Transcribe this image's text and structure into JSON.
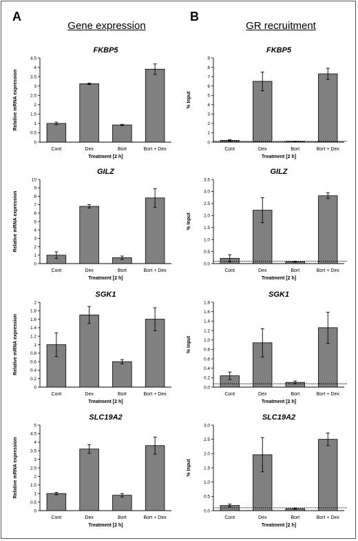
{
  "panels": {
    "left_letter": "A",
    "right_letter": "B"
  },
  "columns": {
    "left_title": "Gene expression",
    "right_title": "GR recruitment"
  },
  "chart_data": [
    {
      "type": "bar",
      "title": "FKBP5",
      "ylabel": "Relative mRNA expression",
      "xlabel": "Treatment [2 h]",
      "categories": [
        "Cont",
        "Dex",
        "Bort",
        "Bort + Dex"
      ],
      "values": [
        1.0,
        3.12,
        0.92,
        3.9
      ],
      "errors": [
        0.07,
        0.04,
        0.03,
        0.28
      ],
      "ylim": [
        0,
        4.5
      ],
      "yticks": [
        "0",
        "0.5",
        "1",
        "1.5",
        "2",
        "2.5",
        "3",
        "3.5",
        "4",
        "4.5"
      ],
      "yticksStep": 0.5
    },
    {
      "type": "bar",
      "title": "FKBP5",
      "ylabel": "% Input",
      "xlabel": "Treatment [2 h]",
      "categories": [
        "Cont",
        "Dex",
        "Bort",
        "Bort + Dex"
      ],
      "values": [
        0.18,
        6.5,
        0.08,
        7.3
      ],
      "errors": [
        0.08,
        1.0,
        0.02,
        0.6
      ],
      "ylim": [
        0,
        9
      ],
      "yticks": [
        "0",
        "1",
        "2",
        "3",
        "4",
        "5",
        "6",
        "7",
        "8",
        "9"
      ],
      "yticksStep": 1,
      "baseline": 0.1
    },
    {
      "type": "bar",
      "title": "GILZ",
      "ylabel": "Relative mRNA expression",
      "xlabel": "Treatment [2 h]",
      "categories": [
        "Cont",
        "Dex",
        "Bort",
        "Bort + Dex"
      ],
      "values": [
        1.0,
        6.8,
        0.7,
        7.8
      ],
      "errors": [
        0.4,
        0.2,
        0.2,
        1.1
      ],
      "ylim": [
        0,
        10
      ],
      "yticks": [
        "0",
        "1",
        "2",
        "3",
        "4",
        "5",
        "6",
        "7",
        "8",
        "9",
        "10"
      ],
      "yticksStep": 1
    },
    {
      "type": "bar",
      "title": "GILZ",
      "ylabel": "% Input",
      "xlabel": "Treatment [2 h]",
      "categories": [
        "Cont",
        "Dex",
        "Bort",
        "Bort + Dex"
      ],
      "values": [
        0.22,
        2.22,
        0.08,
        2.82
      ],
      "errors": [
        0.15,
        0.52,
        0.02,
        0.12
      ],
      "ylim": [
        0,
        3.5
      ],
      "yticks": [
        "0.0",
        "0.5",
        "1.0",
        "1.5",
        "2.0",
        "2.5",
        "3.0",
        "3.5"
      ],
      "yticksStep": 0.5,
      "baseline": 0.1
    },
    {
      "type": "bar",
      "title": "SGK1",
      "ylabel": "Relative mRNA expression",
      "xlabel": "Treatment [2 h]",
      "categories": [
        "Cont",
        "Dex",
        "Bort",
        "Bort + Dex"
      ],
      "values": [
        1.0,
        1.7,
        0.6,
        1.6
      ],
      "errors": [
        0.28,
        0.2,
        0.05,
        0.27
      ],
      "ylim": [
        0,
        2
      ],
      "yticks": [
        "0",
        "0.2",
        "0.4",
        "0.6",
        "0.8",
        "1",
        "1.2",
        "1.4",
        "1.6",
        "1.8",
        "2"
      ],
      "yticksStep": 0.2
    },
    {
      "type": "bar",
      "title": "SGK1",
      "ylabel": "% Input",
      "xlabel": "Treatment [2 h]",
      "categories": [
        "Cont",
        "Dex",
        "Bort",
        "Bort + Dex"
      ],
      "values": [
        0.24,
        0.94,
        0.1,
        1.26
      ],
      "errors": [
        0.08,
        0.3,
        0.03,
        0.33
      ],
      "ylim": [
        0,
        1.8
      ],
      "yticks": [
        "0.0",
        "0.2",
        "0.4",
        "0.6",
        "0.8",
        "1.0",
        "1.2",
        "1.4",
        "1.6",
        "1.8"
      ],
      "yticksStep": 0.2,
      "baseline": 0.07
    },
    {
      "type": "bar",
      "title": "SLC19A2",
      "ylabel": "Relative mRNA expression",
      "xlabel": "Treatment [2 h]",
      "categories": [
        "Cont",
        "Dex",
        "Bort",
        "Bort + Dex"
      ],
      "values": [
        1.0,
        3.6,
        0.9,
        3.8
      ],
      "errors": [
        0.07,
        0.25,
        0.1,
        0.5
      ],
      "ylim": [
        0,
        5
      ],
      "yticks": [
        "0",
        "0.5",
        "1",
        "1.5",
        "2",
        "2.5",
        "3",
        "3.5",
        "4",
        "4.5",
        "5"
      ],
      "yticksStep": 0.5
    },
    {
      "type": "bar",
      "title": "SLC19A2",
      "ylabel": "% Input",
      "xlabel": "Treatment [2 h]",
      "categories": [
        "Cont",
        "Dex",
        "Bort",
        "Bort + Dex"
      ],
      "values": [
        0.18,
        1.96,
        0.07,
        2.5
      ],
      "errors": [
        0.05,
        0.6,
        0.02,
        0.22
      ],
      "ylim": [
        0,
        3.0
      ],
      "yticks": [
        "0.0",
        "0.5",
        "1.0",
        "1.5",
        "2.0",
        "2.5",
        "3.0"
      ],
      "yticksStep": 0.5,
      "baseline": 0.1
    }
  ],
  "style": {
    "bar_color": "#808080",
    "bar_stroke": "#000000"
  }
}
